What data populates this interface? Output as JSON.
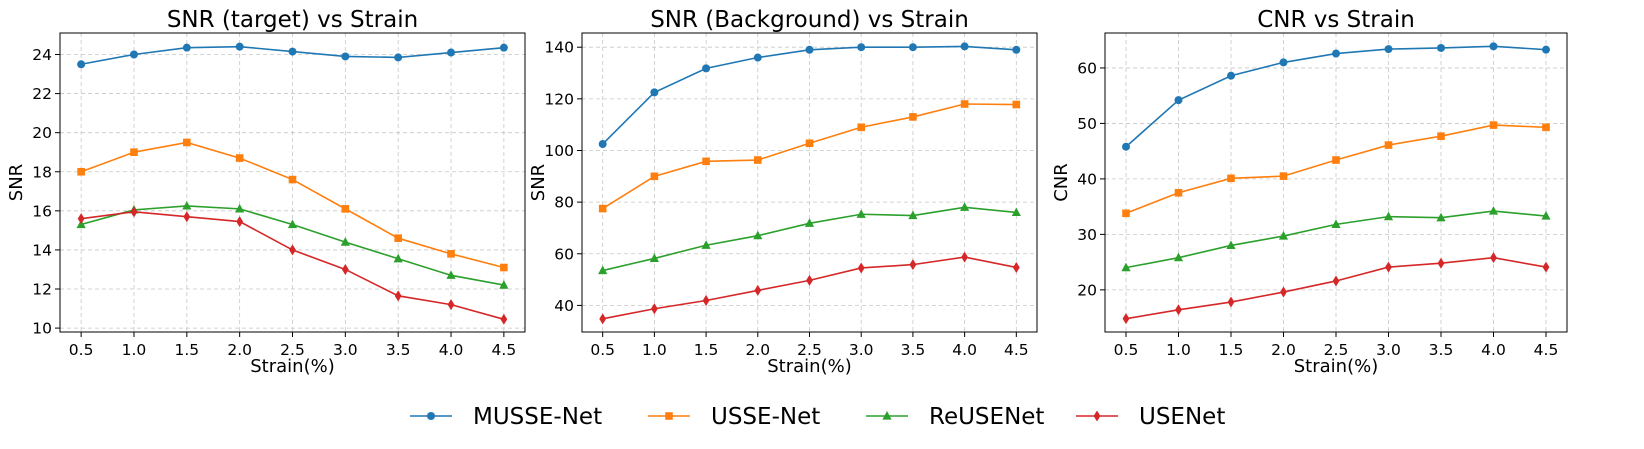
{
  "colors": {
    "MUSSE-Net": "#1f77b4",
    "USSE-Net": "#ff7f0e",
    "ReUSENet": "#2ca02c",
    "USENet": "#d62728"
  },
  "legend": [
    {
      "name": "MUSSE-Net",
      "marker": "circle"
    },
    {
      "name": "USSE-Net",
      "marker": "square"
    },
    {
      "name": "ReUSENet",
      "marker": "triangle"
    },
    {
      "name": "USENet",
      "marker": "diamond"
    }
  ],
  "legend_placement": "bottom-center",
  "chart_data": [
    {
      "type": "line",
      "title": "SNR (target) vs Strain",
      "xlabel": "Strain(%)",
      "ylabel": "SNR",
      "x": [
        0.5,
        1.0,
        1.5,
        2.0,
        2.5,
        3.0,
        3.5,
        4.0,
        4.5
      ],
      "xticks": [
        "0.5",
        "1.0",
        "1.5",
        "2.0",
        "2.5",
        "3.0",
        "3.5",
        "4.0",
        "4.5"
      ],
      "xlim": [
        0.3,
        4.7
      ],
      "ylim": [
        9.8,
        25.1
      ],
      "yticks": [
        "10",
        "12",
        "14",
        "16",
        "18",
        "20",
        "22",
        "24"
      ],
      "grid": true,
      "series": [
        {
          "name": "MUSSE-Net",
          "values": [
            23.5,
            24.0,
            24.35,
            24.4,
            24.15,
            23.9,
            23.85,
            24.1,
            24.35
          ]
        },
        {
          "name": "USSE-Net",
          "values": [
            18.0,
            19.0,
            19.5,
            18.7,
            17.6,
            16.1,
            14.6,
            13.8,
            13.1
          ]
        },
        {
          "name": "ReUSENet",
          "values": [
            15.3,
            16.05,
            16.25,
            16.1,
            15.3,
            14.4,
            13.55,
            12.7,
            12.2
          ]
        },
        {
          "name": "USENet",
          "values": [
            15.6,
            15.95,
            15.7,
            15.45,
            14.0,
            13.0,
            11.65,
            11.2,
            10.45
          ]
        }
      ]
    },
    {
      "type": "line",
      "title": "SNR (Background) vs Strain",
      "xlabel": "Strain(%)",
      "ylabel": "SNR",
      "x": [
        0.5,
        1.0,
        1.5,
        2.0,
        2.5,
        3.0,
        3.5,
        4.0,
        4.5
      ],
      "xticks": [
        "0.5",
        "1.0",
        "1.5",
        "2.0",
        "2.5",
        "3.0",
        "3.5",
        "4.0",
        "4.5"
      ],
      "xlim": [
        0.3,
        4.7
      ],
      "ylim": [
        29.7,
        145.5
      ],
      "yticks": [
        "40",
        "60",
        "80",
        "100",
        "120",
        "140"
      ],
      "grid": true,
      "series": [
        {
          "name": "MUSSE-Net",
          "values": [
            102.5,
            122.5,
            131.8,
            136.0,
            139.0,
            140.0,
            140.0,
            140.3,
            139.0
          ]
        },
        {
          "name": "USSE-Net",
          "values": [
            77.5,
            90.0,
            95.8,
            96.3,
            102.8,
            109.0,
            113.0,
            118.0,
            117.8
          ]
        },
        {
          "name": "ReUSENet",
          "values": [
            53.5,
            58.2,
            63.3,
            67.0,
            71.8,
            75.3,
            74.8,
            78.0,
            76.0
          ]
        },
        {
          "name": "USENet",
          "values": [
            34.8,
            38.7,
            41.9,
            45.8,
            49.7,
            54.5,
            55.8,
            58.7,
            54.7
          ]
        }
      ]
    },
    {
      "type": "line",
      "title": "CNR vs Strain",
      "xlabel": "Strain(%)",
      "ylabel": "CNR",
      "x": [
        0.5,
        1.0,
        1.5,
        2.0,
        2.5,
        3.0,
        3.5,
        4.0,
        4.5
      ],
      "xticks": [
        "0.5",
        "1.0",
        "1.5",
        "2.0",
        "2.5",
        "3.0",
        "3.5",
        "4.0",
        "4.5"
      ],
      "xlim": [
        0.3,
        4.7
      ],
      "ylim": [
        12.4,
        66.3
      ],
      "yticks": [
        "20",
        "30",
        "40",
        "50",
        "60"
      ],
      "grid": true,
      "series": [
        {
          "name": "MUSSE-Net",
          "values": [
            45.8,
            54.2,
            58.6,
            61.0,
            62.6,
            63.4,
            63.6,
            63.9,
            63.3
          ]
        },
        {
          "name": "USSE-Net",
          "values": [
            33.8,
            37.5,
            40.1,
            40.5,
            43.4,
            46.1,
            47.7,
            49.7,
            49.3
          ]
        },
        {
          "name": "ReUSENet",
          "values": [
            24.0,
            25.8,
            28.0,
            29.7,
            31.8,
            33.2,
            33.0,
            34.2,
            33.3
          ]
        },
        {
          "name": "USENet",
          "values": [
            14.8,
            16.4,
            17.8,
            19.6,
            21.6,
            24.1,
            24.8,
            25.8,
            24.1
          ]
        }
      ]
    }
  ]
}
